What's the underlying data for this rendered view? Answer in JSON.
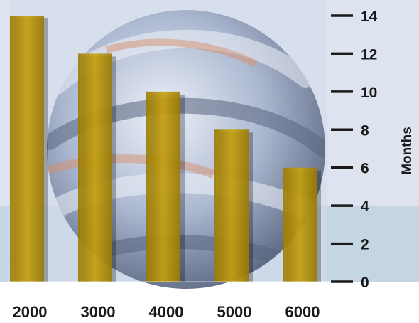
{
  "chart_data": {
    "type": "bar",
    "categories": [
      "2000",
      "3000",
      "4000",
      "5000",
      "6000"
    ],
    "values": [
      14,
      12,
      10,
      8,
      6
    ],
    "ylabel": "Months",
    "xlabel": "",
    "ylim": [
      0,
      14
    ],
    "yticks": [
      0,
      2,
      4,
      6,
      8,
      10,
      12,
      14
    ],
    "yaxis_side": "right",
    "grid": false,
    "legend": "none",
    "colors": {
      "bar": "#c9a30f",
      "bar_edge": "#9a7a05",
      "background_upper": "#dde3ef",
      "background_lower": "#c4d6e1",
      "globe_light": "#eef2fa",
      "globe_mid": "#a9b6cf",
      "globe_dark": "#59657f",
      "globe_accent": "#d88f6e",
      "axis": "#1a1a1a"
    }
  }
}
